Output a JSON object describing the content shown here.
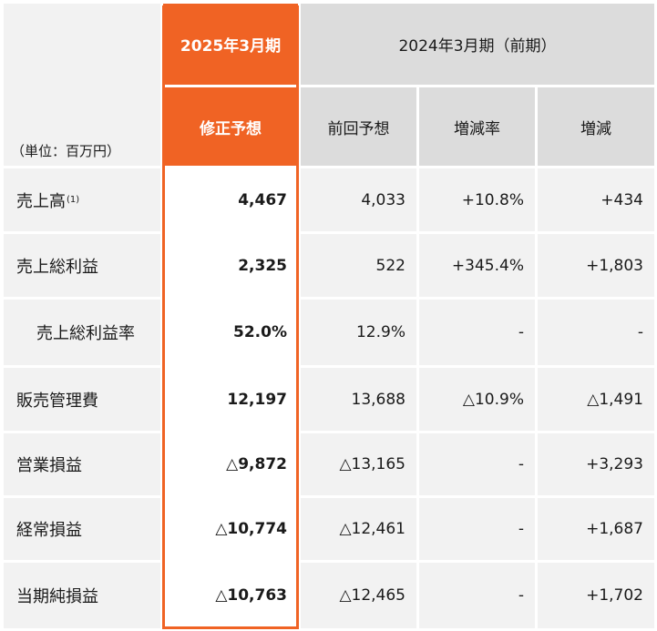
{
  "header": {
    "unit_label": "（単位：百万円）",
    "current_period": "2025年3月期",
    "prior_period": "2024年3月期（前期）",
    "col_revised_forecast": "修正予想",
    "col_previous_forecast": "前回予想",
    "col_change_rate": "増減率",
    "col_change": "増減"
  },
  "rows": [
    {
      "label": "売上高",
      "note": "(1)",
      "revised": "4,467",
      "previous": "4,033",
      "rate": "+10.8%",
      "change": "+434"
    },
    {
      "label": "売上総利益",
      "revised": "2,325",
      "previous": "522",
      "rate": "+345.4%",
      "change": "+1,803"
    },
    {
      "label": "売上総利益率",
      "revised": "52.0%",
      "previous": "12.9%",
      "rate": "-",
      "change": "-"
    },
    {
      "label": "販売管理費",
      "revised": "12,197",
      "previous": "13,688",
      "rate": "△10.9%",
      "change": "△1,491"
    },
    {
      "label": "営業損益",
      "revised": "△9,872",
      "previous": "△13,165",
      "rate": "-",
      "change": "+3,293"
    },
    {
      "label": "経常損益",
      "revised": "△10,774",
      "previous": "△12,461",
      "rate": "-",
      "change": "+1,687"
    },
    {
      "label": "当期純損益",
      "revised": "△10,763",
      "previous": "△12,465",
      "rate": "-",
      "change": "+1,702"
    }
  ],
  "colors": {
    "accent": "#f06324",
    "header_grey": "#dcdcdc",
    "body_grey": "#f2f2f2"
  }
}
